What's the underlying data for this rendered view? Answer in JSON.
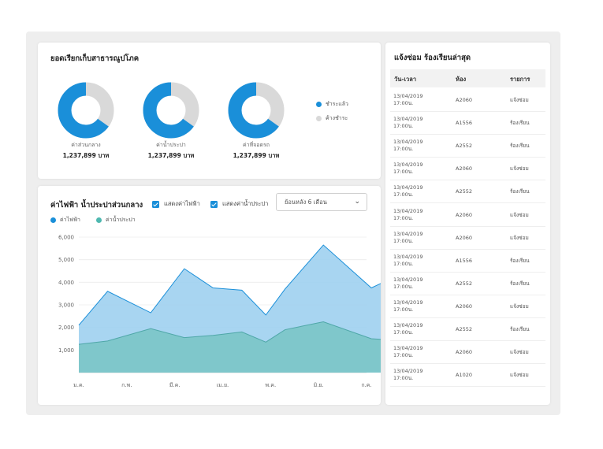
{
  "donut_card": {
    "title": "ยอดเรียกเก็บสาธารณูปโภค",
    "donuts": [
      {
        "caption": "ค่าส่วนกลาง",
        "value": "1,237,899 บาท",
        "paid_fraction": 0.65
      },
      {
        "caption": "ค่าน้ำประปา",
        "value": "1,237,899 บาท",
        "paid_fraction": 0.65
      },
      {
        "caption": "ค่าที่จอดรถ",
        "value": "1,237,899 บาท",
        "paid_fraction": 0.65
      }
    ],
    "legend": [
      {
        "label": "ชำระแล้ว",
        "color": "#1a8fd9"
      },
      {
        "label": "ค้างชำระ",
        "color": "#d9d9d9"
      }
    ]
  },
  "chart_card": {
    "title": "ค่าไฟฟ้า น้ำประปาส่วนกลาง",
    "checkbox_electric": "แสดงค่าไฟฟ้า",
    "checkbox_water": "แสดงค่าน้ำประปา",
    "select_value": "ย้อนหลัง 6 เดือน",
    "legend": [
      {
        "label": "ค่าไฟฟ้า",
        "color": "#1a8fd9"
      },
      {
        "label": "ค่าน้ำประปา",
        "color": "#4fb8b0"
      }
    ]
  },
  "chart_data": {
    "type": "area",
    "xlabels": [
      "ม.ค.",
      "ก.พ.",
      "มี.ค.",
      "เม.ย.",
      "พ.ค.",
      "มิ.ย.",
      "ก.ค."
    ],
    "yticks": [
      1000,
      2000,
      3000,
      4000,
      5000,
      6000
    ],
    "ytick_labels": [
      "1,000",
      "2,000",
      "3,000",
      "4,000",
      "5,000",
      "6,000"
    ],
    "ylim": [
      0,
      6000
    ],
    "x": [
      0,
      0.6,
      1.5,
      2.2,
      2.8,
      3.4,
      3.9,
      4.3,
      5.1,
      6.1,
      6.9
    ],
    "series": [
      {
        "name": "ค่าไฟฟ้า",
        "color": "#9fd0ef",
        "stroke": "#1a8fd9",
        "values": [
          2100,
          3600,
          2650,
          4600,
          3750,
          3650,
          2550,
          3700,
          5650,
          3750,
          4550
        ]
      },
      {
        "name": "ค่าน้ำประปา",
        "color": "#7cc6c8",
        "stroke": "#4fa7a8",
        "values": [
          1250,
          1400,
          1950,
          1550,
          1650,
          1800,
          1350,
          1900,
          2250,
          1500,
          1400
        ]
      }
    ],
    "grid": true
  },
  "repair_card": {
    "title": "แจ้งซ่อม ร้องเรียนล่าสุด",
    "headers": [
      "วัน-เวลา",
      "ห้อง",
      "รายการ"
    ],
    "rows": [
      {
        "date": "13/04/2019",
        "time": "17:00น.",
        "room": "A2060",
        "item": "แจ้งซ่อม"
      },
      {
        "date": "13/04/2019",
        "time": "17:00น.",
        "room": "A1556",
        "item": "ร้องเรียน"
      },
      {
        "date": "13/04/2019",
        "time": "17:00น.",
        "room": "A2552",
        "item": "ร้องเรียน"
      },
      {
        "date": "13/04/2019",
        "time": "17:00น.",
        "room": "A2060",
        "item": "แจ้งซ่อม"
      },
      {
        "date": "13/04/2019",
        "time": "17:00น.",
        "room": "A2552",
        "item": "ร้องเรียน"
      },
      {
        "date": "13/04/2019",
        "time": "17:00น.",
        "room": "A2060",
        "item": "แจ้งซ่อม"
      },
      {
        "date": "13/04/2019",
        "time": "17:00น.",
        "room": "A2060",
        "item": "แจ้งซ่อม"
      },
      {
        "date": "13/04/2019",
        "time": "17:00น.",
        "room": "A1556",
        "item": "ร้องเรียน"
      },
      {
        "date": "13/04/2019",
        "time": "17:00น.",
        "room": "A2552",
        "item": "ร้องเรียน"
      },
      {
        "date": "13/04/2019",
        "time": "17:00น.",
        "room": "A2060",
        "item": "แจ้งซ่อม"
      },
      {
        "date": "13/04/2019",
        "time": "17:00น.",
        "room": "A2552",
        "item": "ร้องเรียน"
      },
      {
        "date": "13/04/2019",
        "time": "17:00น.",
        "room": "A2060",
        "item": "แจ้งซ่อม"
      },
      {
        "date": "13/04/2019",
        "time": "17:00น.",
        "room": "A1020",
        "item": "แจ้งซ่อม"
      }
    ]
  }
}
